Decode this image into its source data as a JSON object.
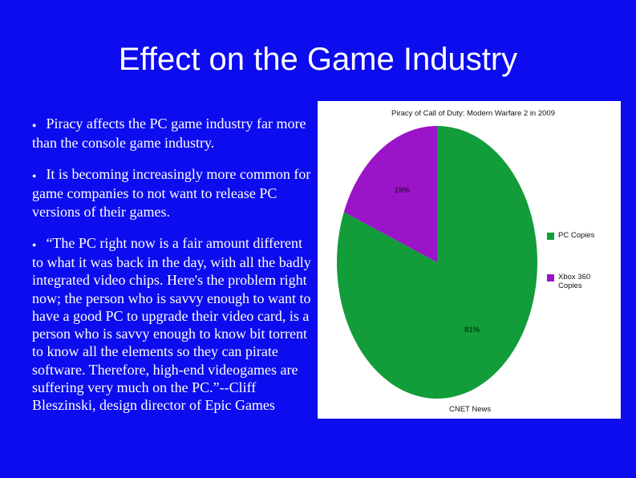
{
  "title": "Effect on the Game Industry",
  "bullets": [
    "Piracy affects the PC game industry far more than the console game industry.",
    "It is becoming increasingly more common for game companies to not want to release PC versions of their games.",
    "“The PC right now is a fair amount different to what it was back in the day, with all the badly integrated video chips. Here's the problem right now; the person who is savvy enough to want to have a good PC to upgrade their video card, is a person who is savvy enough to know bit torrent to know all the elements so they can pirate software. Therefore, high-end videogames are suffering very much on the PC.”--Cliff Bleszinski, design director of Epic Games"
  ],
  "chart_data": {
    "type": "pie",
    "title": "Piracy of Call of Duty: Modern Warfare 2 in 2009",
    "categories": [
      "PC Copies",
      "Xbox 360 Copies"
    ],
    "values": [
      81,
      19
    ],
    "value_labels": [
      "81%",
      "19%"
    ],
    "colors": [
      "#129c3a",
      "#9b14c8"
    ],
    "source": "CNET News"
  }
}
